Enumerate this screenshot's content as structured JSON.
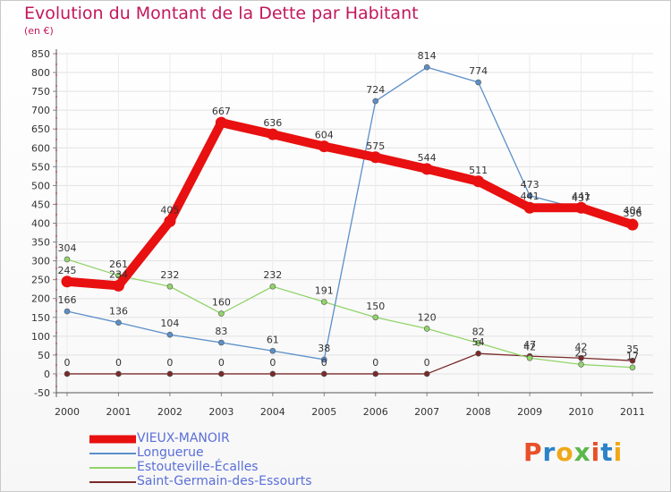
{
  "header": {
    "title": "Evolution du Montant de la Dette par Habitant",
    "subtitle": "(en €)"
  },
  "logo": {
    "text": "Proxiti",
    "colors": [
      "#e8502a",
      "#2b82c9",
      "#f0a818",
      "#5cb84a",
      "#e8502a",
      "#2b82c9",
      "#f0a818"
    ]
  },
  "chart_data": {
    "type": "line",
    "x": [
      "2000",
      "2001",
      "2002",
      "2003",
      "2004",
      "2005",
      "2006",
      "2007",
      "2008",
      "2009",
      "2010",
      "2011"
    ],
    "ylim": [
      -50,
      850
    ],
    "yticks": [
      -50,
      0,
      50,
      100,
      150,
      200,
      250,
      300,
      350,
      400,
      450,
      500,
      550,
      600,
      650,
      700,
      750,
      800,
      850
    ],
    "grid": true,
    "legend_position": "bottom-left",
    "series": [
      {
        "name": "VIEUX-MANOIR",
        "color": "#e81010",
        "values": [
          245,
          234,
          405,
          667,
          636,
          604,
          575,
          544,
          511,
          441,
          441,
          396
        ],
        "labels": [
          "245",
          "234",
          "405",
          "667",
          "636",
          "604",
          "575",
          "544",
          "511",
          "441",
          "441",
          "396"
        ]
      },
      {
        "name": "Longuerue",
        "color": "#5b8fc9",
        "values": [
          166,
          136,
          104,
          83,
          61,
          38,
          724,
          814,
          774,
          473,
          437,
          404
        ],
        "labels": [
          "166",
          "136",
          "104",
          "83",
          "61",
          "38",
          "724",
          "814",
          "774",
          "473",
          "437",
          "404"
        ]
      },
      {
        "name": "Estouteville-Écalles",
        "color": "#92d46a",
        "values": [
          304,
          261,
          232,
          160,
          232,
          191,
          150,
          120,
          82,
          42,
          25,
          17
        ],
        "labels": [
          "304",
          "261",
          "232",
          "160",
          "232",
          "191",
          "150",
          "120",
          "82",
          "42",
          "25",
          "17"
        ]
      },
      {
        "name": "Saint-Germain-des-Essourts",
        "color": "#7a2a2a",
        "values": [
          0,
          0,
          0,
          0,
          0,
          0,
          0,
          0,
          54,
          47,
          42,
          35
        ],
        "labels": [
          "0",
          "0",
          "0",
          "0",
          "0",
          "0",
          "0",
          "0",
          "54",
          "47",
          "42",
          "35"
        ]
      }
    ]
  }
}
